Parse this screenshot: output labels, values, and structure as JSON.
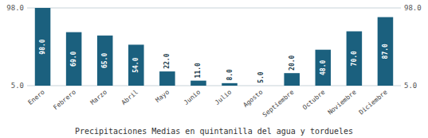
{
  "chart_data": {
    "type": "bar",
    "title": "Precipitaciones Medias en quintanilla del agua y tordueles",
    "categories": [
      "Enero",
      "Febrero",
      "Marzo",
      "Abril",
      "Mayo",
      "Junio",
      "Julio",
      "Agosto",
      "Septiembre",
      "Octubre",
      "Noviembre",
      "Diciembre"
    ],
    "values": [
      98.0,
      69.0,
      65.0,
      54.0,
      22.0,
      11.0,
      8.0,
      5.0,
      20.0,
      48.0,
      70.0,
      87.0
    ],
    "value_labels": [
      "98.0",
      "69.0",
      "65.0",
      "54.0",
      "22.0",
      "11.0",
      "8.0",
      "5.0",
      "20.0",
      "48.0",
      "70.0",
      "87.0"
    ],
    "data_labels": true,
    "color": "#1b607e",
    "ylim": [
      5.0,
      98.0
    ],
    "yticks": [
      {
        "value": 5.0,
        "label": "5.0"
      },
      {
        "value": 98.0,
        "label": "98.0"
      }
    ],
    "y2lim": [
      5.0,
      98.0
    ],
    "y2ticks": [
      {
        "value": 5.0,
        "label": "5.0"
      },
      {
        "value": 98.0,
        "label": "98.0"
      }
    ],
    "grid": true
  }
}
